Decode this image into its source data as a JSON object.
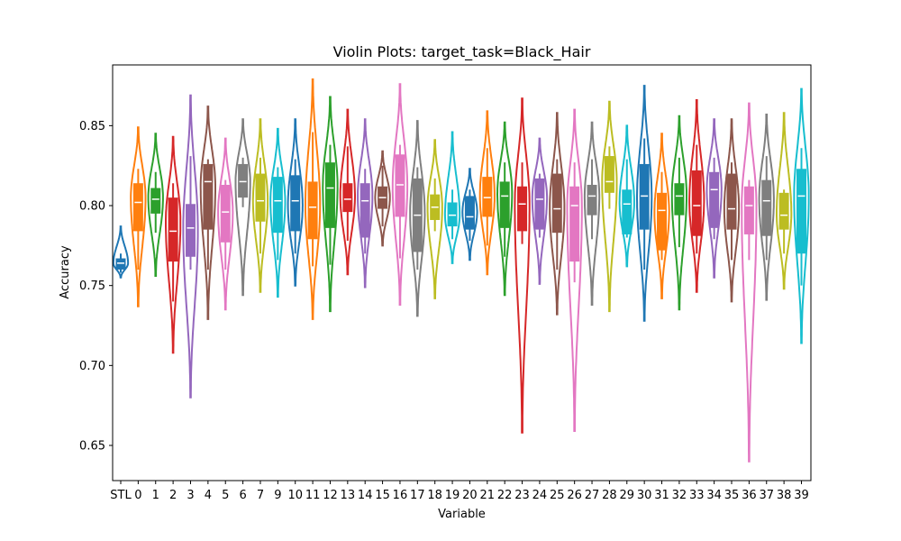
{
  "chart_data": {
    "type": "violin",
    "title": "Violin Plots: target_task=Black_Hair",
    "xlabel": "Variable",
    "ylabel": "Accuracy",
    "ylim": [
      0.628,
      0.888
    ],
    "yticks": [
      0.65,
      0.7,
      0.75,
      0.8,
      0.85
    ],
    "ytick_labels": [
      "0.65",
      "0.70",
      "0.75",
      "0.80",
      "0.85"
    ],
    "grid": false,
    "categories": [
      "STL",
      "0",
      "1",
      "2",
      "3",
      "4",
      "5",
      "6",
      "7",
      "9",
      "10",
      "11",
      "12",
      "13",
      "14",
      "15",
      "16",
      "17",
      "18",
      "19",
      "20",
      "21",
      "22",
      "23",
      "24",
      "25",
      "26",
      "27",
      "28",
      "29",
      "30",
      "31",
      "32",
      "33",
      "34",
      "35",
      "36",
      "37",
      "38",
      "39"
    ],
    "series": [
      {
        "color": "#1f77b4",
        "min": 0.755,
        "max": 0.787,
        "q1": 0.76,
        "median": 0.764,
        "q3": 0.767,
        "wlo": 0.758,
        "whi": 0.77,
        "peak": 0.764
      },
      {
        "color": "#ff7f0e",
        "min": 0.737,
        "max": 0.849,
        "q1": 0.784,
        "median": 0.802,
        "q3": 0.814,
        "wlo": 0.76,
        "whi": 0.823,
        "peak": 0.805
      },
      {
        "color": "#2ca02c",
        "min": 0.756,
        "max": 0.845,
        "q1": 0.795,
        "median": 0.804,
        "q3": 0.811,
        "wlo": 0.783,
        "whi": 0.821,
        "peak": 0.805
      },
      {
        "color": "#d62728",
        "min": 0.708,
        "max": 0.843,
        "q1": 0.765,
        "median": 0.784,
        "q3": 0.805,
        "wlo": 0.74,
        "whi": 0.814,
        "peak": 0.79
      },
      {
        "color": "#9467bd",
        "min": 0.68,
        "max": 0.869,
        "q1": 0.768,
        "median": 0.786,
        "q3": 0.801,
        "wlo": 0.76,
        "whi": 0.831,
        "peak": 0.785
      },
      {
        "color": "#8c564b",
        "min": 0.729,
        "max": 0.862,
        "q1": 0.785,
        "median": 0.815,
        "q3": 0.826,
        "wlo": 0.76,
        "whi": 0.829,
        "peak": 0.812
      },
      {
        "color": "#e377c2",
        "min": 0.735,
        "max": 0.842,
        "q1": 0.777,
        "median": 0.796,
        "q3": 0.813,
        "wlo": 0.76,
        "whi": 0.816,
        "peak": 0.796
      },
      {
        "color": "#7f7f7f",
        "min": 0.744,
        "max": 0.854,
        "q1": 0.805,
        "median": 0.815,
        "q3": 0.826,
        "wlo": 0.799,
        "whi": 0.83,
        "peak": 0.815
      },
      {
        "color": "#bcbd22",
        "min": 0.746,
        "max": 0.854,
        "q1": 0.79,
        "median": 0.803,
        "q3": 0.82,
        "wlo": 0.77,
        "whi": 0.83,
        "peak": 0.803
      },
      {
        "color": "#17becf",
        "min": 0.743,
        "max": 0.848,
        "q1": 0.783,
        "median": 0.803,
        "q3": 0.818,
        "wlo": 0.766,
        "whi": 0.824,
        "peak": 0.803
      },
      {
        "color": "#1f77b4",
        "min": 0.75,
        "max": 0.854,
        "q1": 0.784,
        "median": 0.803,
        "q3": 0.819,
        "wlo": 0.77,
        "whi": 0.829,
        "peak": 0.8
      },
      {
        "color": "#ff7f0e",
        "min": 0.729,
        "max": 0.879,
        "q1": 0.779,
        "median": 0.799,
        "q3": 0.815,
        "wlo": 0.762,
        "whi": 0.846,
        "peak": 0.8
      },
      {
        "color": "#2ca02c",
        "min": 0.734,
        "max": 0.868,
        "q1": 0.786,
        "median": 0.811,
        "q3": 0.827,
        "wlo": 0.763,
        "whi": 0.838,
        "peak": 0.812
      },
      {
        "color": "#d62728",
        "min": 0.757,
        "max": 0.86,
        "q1": 0.796,
        "median": 0.804,
        "q3": 0.814,
        "wlo": 0.778,
        "whi": 0.837,
        "peak": 0.806
      },
      {
        "color": "#9467bd",
        "min": 0.749,
        "max": 0.854,
        "q1": 0.78,
        "median": 0.803,
        "q3": 0.814,
        "wlo": 0.77,
        "whi": 0.823,
        "peak": 0.806
      },
      {
        "color": "#8c564b",
        "min": 0.775,
        "max": 0.834,
        "q1": 0.798,
        "median": 0.805,
        "q3": 0.812,
        "wlo": 0.787,
        "whi": 0.825,
        "peak": 0.805
      },
      {
        "color": "#e377c2",
        "min": 0.738,
        "max": 0.876,
        "q1": 0.793,
        "median": 0.813,
        "q3": 0.832,
        "wlo": 0.767,
        "whi": 0.838,
        "peak": 0.812
      },
      {
        "color": "#7f7f7f",
        "min": 0.731,
        "max": 0.853,
        "q1": 0.771,
        "median": 0.794,
        "q3": 0.817,
        "wlo": 0.76,
        "whi": 0.824,
        "peak": 0.795
      },
      {
        "color": "#bcbd22",
        "min": 0.742,
        "max": 0.841,
        "q1": 0.791,
        "median": 0.799,
        "q3": 0.807,
        "wlo": 0.784,
        "whi": 0.817,
        "peak": 0.799
      },
      {
        "color": "#17becf",
        "min": 0.764,
        "max": 0.846,
        "q1": 0.787,
        "median": 0.794,
        "q3": 0.802,
        "wlo": 0.779,
        "whi": 0.81,
        "peak": 0.794
      },
      {
        "color": "#1f77b4",
        "min": 0.766,
        "max": 0.823,
        "q1": 0.785,
        "median": 0.793,
        "q3": 0.806,
        "wlo": 0.778,
        "whi": 0.81,
        "peak": 0.796
      },
      {
        "color": "#ff7f0e",
        "min": 0.757,
        "max": 0.859,
        "q1": 0.793,
        "median": 0.805,
        "q3": 0.818,
        "wlo": 0.775,
        "whi": 0.836,
        "peak": 0.806
      },
      {
        "color": "#2ca02c",
        "min": 0.744,
        "max": 0.852,
        "q1": 0.786,
        "median": 0.806,
        "q3": 0.815,
        "wlo": 0.768,
        "whi": 0.827,
        "peak": 0.808
      },
      {
        "color": "#d62728",
        "min": 0.658,
        "max": 0.867,
        "q1": 0.784,
        "median": 0.801,
        "q3": 0.812,
        "wlo": 0.776,
        "whi": 0.827,
        "peak": 0.801
      },
      {
        "color": "#9467bd",
        "min": 0.751,
        "max": 0.842,
        "q1": 0.785,
        "median": 0.804,
        "q3": 0.817,
        "wlo": 0.78,
        "whi": 0.82,
        "peak": 0.805
      },
      {
        "color": "#8c564b",
        "min": 0.732,
        "max": 0.858,
        "q1": 0.783,
        "median": 0.798,
        "q3": 0.82,
        "wlo": 0.76,
        "whi": 0.829,
        "peak": 0.798
      },
      {
        "color": "#e377c2",
        "min": 0.659,
        "max": 0.86,
        "q1": 0.765,
        "median": 0.8,
        "q3": 0.812,
        "wlo": 0.752,
        "whi": 0.827,
        "peak": 0.8
      },
      {
        "color": "#7f7f7f",
        "min": 0.738,
        "max": 0.852,
        "q1": 0.794,
        "median": 0.806,
        "q3": 0.813,
        "wlo": 0.779,
        "whi": 0.829,
        "peak": 0.806
      },
      {
        "color": "#bcbd22",
        "min": 0.734,
        "max": 0.865,
        "q1": 0.808,
        "median": 0.815,
        "q3": 0.831,
        "wlo": 0.798,
        "whi": 0.837,
        "peak": 0.815
      },
      {
        "color": "#17becf",
        "min": 0.762,
        "max": 0.85,
        "q1": 0.782,
        "median": 0.801,
        "q3": 0.81,
        "wlo": 0.78,
        "whi": 0.829,
        "peak": 0.802
      },
      {
        "color": "#1f77b4",
        "min": 0.728,
        "max": 0.875,
        "q1": 0.785,
        "median": 0.806,
        "q3": 0.826,
        "wlo": 0.76,
        "whi": 0.842,
        "peak": 0.805
      },
      {
        "color": "#ff7f0e",
        "min": 0.742,
        "max": 0.845,
        "q1": 0.772,
        "median": 0.797,
        "q3": 0.808,
        "wlo": 0.766,
        "whi": 0.821,
        "peak": 0.796
      },
      {
        "color": "#2ca02c",
        "min": 0.735,
        "max": 0.856,
        "q1": 0.794,
        "median": 0.806,
        "q3": 0.814,
        "wlo": 0.774,
        "whi": 0.83,
        "peak": 0.807
      },
      {
        "color": "#d62728",
        "min": 0.746,
        "max": 0.866,
        "q1": 0.781,
        "median": 0.8,
        "q3": 0.822,
        "wlo": 0.77,
        "whi": 0.838,
        "peak": 0.803
      },
      {
        "color": "#9467bd",
        "min": 0.755,
        "max": 0.854,
        "q1": 0.786,
        "median": 0.81,
        "q3": 0.821,
        "wlo": 0.779,
        "whi": 0.83,
        "peak": 0.81
      },
      {
        "color": "#8c564b",
        "min": 0.74,
        "max": 0.854,
        "q1": 0.785,
        "median": 0.798,
        "q3": 0.82,
        "wlo": 0.766,
        "whi": 0.827,
        "peak": 0.798
      },
      {
        "color": "#e377c2",
        "min": 0.64,
        "max": 0.864,
        "q1": 0.782,
        "median": 0.8,
        "q3": 0.812,
        "wlo": 0.766,
        "whi": 0.816,
        "peak": 0.8
      },
      {
        "color": "#7f7f7f",
        "min": 0.741,
        "max": 0.857,
        "q1": 0.781,
        "median": 0.803,
        "q3": 0.816,
        "wlo": 0.766,
        "whi": 0.831,
        "peak": 0.804
      },
      {
        "color": "#bcbd22",
        "min": 0.748,
        "max": 0.858,
        "q1": 0.785,
        "median": 0.794,
        "q3": 0.808,
        "wlo": 0.77,
        "whi": 0.81,
        "peak": 0.795
      },
      {
        "color": "#17becf",
        "min": 0.714,
        "max": 0.873,
        "q1": 0.77,
        "median": 0.806,
        "q3": 0.823,
        "wlo": 0.75,
        "whi": 0.836,
        "peak": 0.806
      }
    ]
  }
}
